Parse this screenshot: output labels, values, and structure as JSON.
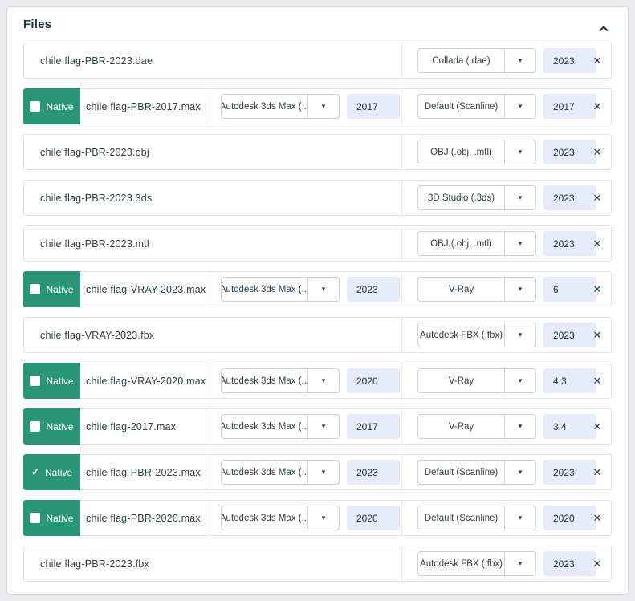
{
  "panel": {
    "title": "Files"
  },
  "native_label": "Native",
  "icons": {
    "check": "✓",
    "close": "✕",
    "select_arrow": "▾",
    "collapse": "chevron-up"
  },
  "colors": {
    "accent_green": "#2a9577",
    "input_bg": "#e7ecfa",
    "text_dark": "#16333f"
  },
  "rows": [
    {
      "file": "chile flag-PBR-2023.dae",
      "native": null,
      "primary": null,
      "secondary": {
        "option": "Collada (.dae)",
        "version": "2023"
      }
    },
    {
      "file": "chile flag-PBR-2017.max",
      "native": "unchecked",
      "primary": {
        "option": "Autodesk 3ds Max (...",
        "version": "2017"
      },
      "secondary": {
        "option": "Default (Scanline)",
        "version": "2017"
      }
    },
    {
      "file": "chile flag-PBR-2023.obj",
      "native": null,
      "primary": null,
      "secondary": {
        "option": "OBJ (.obj, .mtl)",
        "version": "2023"
      }
    },
    {
      "file": "chile flag-PBR-2023.3ds",
      "native": null,
      "primary": null,
      "secondary": {
        "option": "3D Studio (.3ds)",
        "version": "2023"
      }
    },
    {
      "file": "chile flag-PBR-2023.mtl",
      "native": null,
      "primary": null,
      "secondary": {
        "option": "OBJ (.obj, .mtl)",
        "version": "2023"
      }
    },
    {
      "file": "chile flag-VRAY-2023.max",
      "native": "unchecked",
      "primary": {
        "option": "Autodesk 3ds Max (...",
        "version": "2023"
      },
      "secondary": {
        "option": "V-Ray",
        "version": "6"
      }
    },
    {
      "file": "chile flag-VRAY-2023.fbx",
      "native": null,
      "primary": null,
      "secondary": {
        "option": "Autodesk FBX (.fbx)",
        "version": "2023"
      }
    },
    {
      "file": "chile flag-VRAY-2020.max",
      "native": "unchecked",
      "primary": {
        "option": "Autodesk 3ds Max (...",
        "version": "2020"
      },
      "secondary": {
        "option": "V-Ray",
        "version": "4.3"
      }
    },
    {
      "file": "chile flag-2017.max",
      "native": "unchecked",
      "primary": {
        "option": "Autodesk 3ds Max (...",
        "version": "2017"
      },
      "secondary": {
        "option": "V-Ray",
        "version": "3.4"
      }
    },
    {
      "file": "chile flag-PBR-2023.max",
      "native": "checked",
      "primary": {
        "option": "Autodesk 3ds Max (...",
        "version": "2023"
      },
      "secondary": {
        "option": "Default (Scanline)",
        "version": "2023"
      }
    },
    {
      "file": "chile flag-PBR-2020.max",
      "native": "unchecked",
      "primary": {
        "option": "Autodesk 3ds Max (...",
        "version": "2020"
      },
      "secondary": {
        "option": "Default (Scanline)",
        "version": "2020"
      }
    },
    {
      "file": "chile flag-PBR-2023.fbx",
      "native": null,
      "primary": null,
      "secondary": {
        "option": "Autodesk FBX (.fbx)",
        "version": "2023"
      }
    }
  ]
}
